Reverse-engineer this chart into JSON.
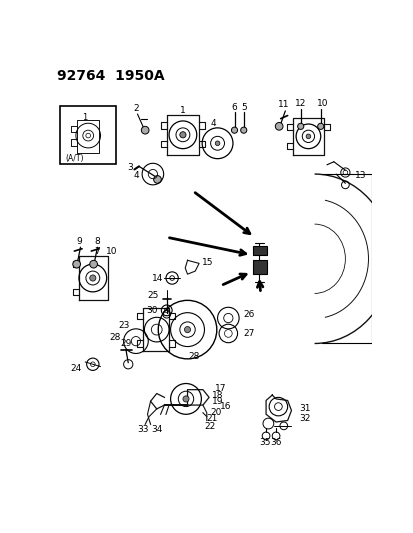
{
  "title": "92764  1950A",
  "bg_color": "#ffffff",
  "title_fontsize": 10,
  "fig_width": 4.14,
  "fig_height": 5.33,
  "dpi": 100,
  "line_color": "#111111",
  "label_fontsize": 6.5
}
